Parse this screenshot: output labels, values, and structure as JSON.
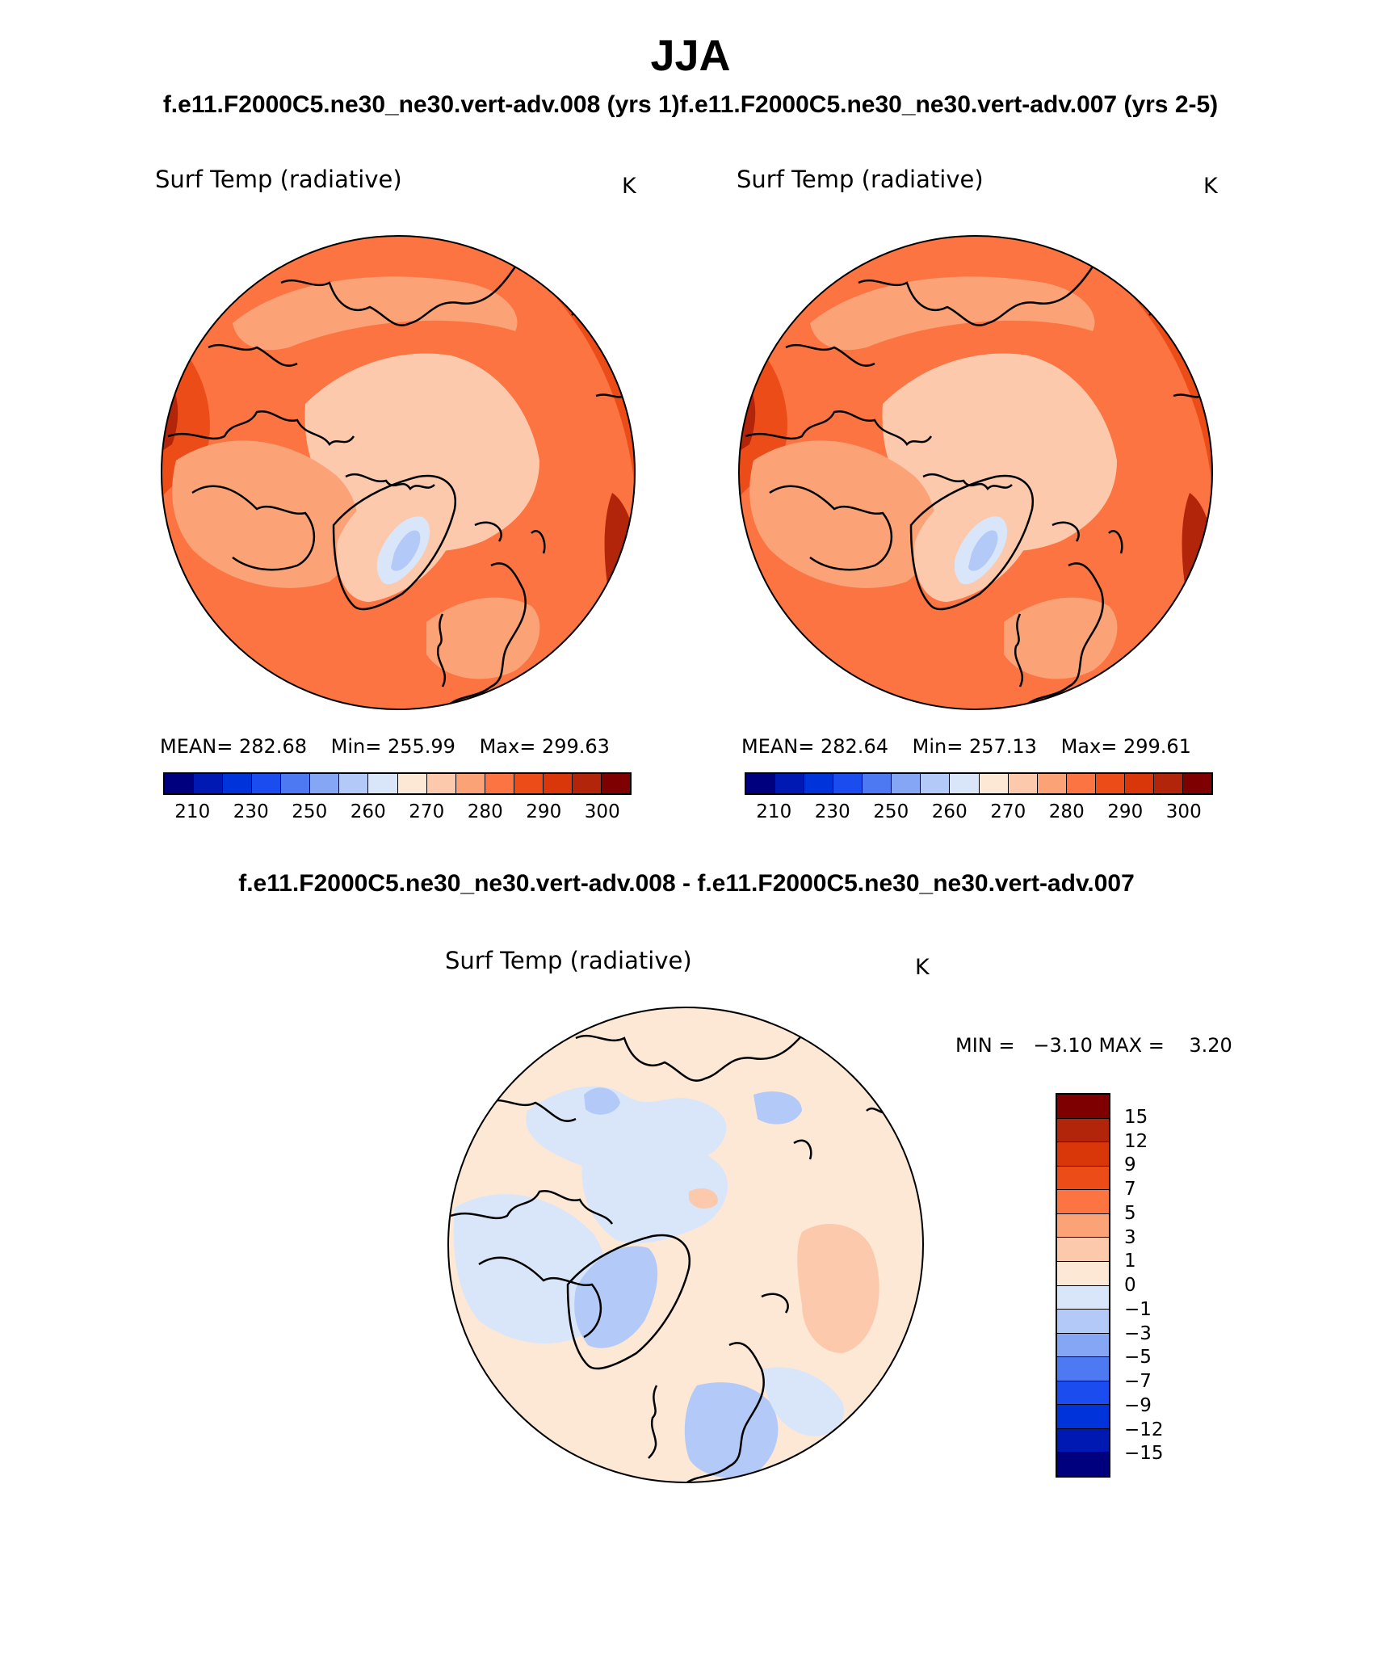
{
  "title": "JJA",
  "subtitle": "f.e11.F2000C5.ne30_ne30.vert-adv.008 (yrs 1)f.e11.F2000C5.ne30_ne30.vert-adv.007 (yrs 2-5)",
  "diff_title": "f.e11.F2000C5.ne30_ne30.vert-adv.008 - f.e11.F2000C5.ne30_ne30.vert-adv.007",
  "panels": {
    "left": {
      "variable": "Surf Temp (radiative)",
      "units": "K",
      "mean_label": "MEAN=",
      "mean": "282.68",
      "min_label": "Min=",
      "min": "255.99",
      "max_label": "Max=",
      "max": "299.63"
    },
    "right": {
      "variable": "Surf Temp (radiative)",
      "units": "K",
      "mean_label": "MEAN=",
      "mean": "282.64",
      "min_label": "Min=",
      "min": "257.13",
      "max_label": "Max=",
      "max": "299.61"
    },
    "diff": {
      "variable": "Surf Temp (radiative)",
      "units": "K",
      "minmax": "MIN =   −3.10 MAX =    3.20"
    }
  },
  "colorbar_abs": {
    "colors": [
      "#00007f",
      "#0019b3",
      "#0033d9",
      "#1a4cf0",
      "#4d79f2",
      "#85a5f5",
      "#b3c9f7",
      "#d9e6fa",
      "#fde8d6",
      "#fdc9ad",
      "#fca277",
      "#fb7442",
      "#ec4d18",
      "#d9370a",
      "#b3250a",
      "#7f0000"
    ],
    "tick_labels": [
      "210",
      "230",
      "250",
      "260",
      "270",
      "280",
      "290",
      "300"
    ]
  },
  "colorbar_diff": {
    "colors": [
      "#7f0000",
      "#b3250a",
      "#d9370a",
      "#ec4d18",
      "#fb7442",
      "#fca277",
      "#fdc9ad",
      "#fde8d6",
      "#d9e6fa",
      "#b3c9f7",
      "#85a5f5",
      "#4d79f2",
      "#1a4cf0",
      "#0033d9",
      "#0019b3",
      "#00007f"
    ],
    "tick_labels": [
      "15",
      "12",
      "9",
      "7",
      "5",
      "3",
      "1",
      "0",
      "−1",
      "−3",
      "−5",
      "−7",
      "−9",
      "−12",
      "−15"
    ]
  },
  "chart_data": [
    {
      "type": "heatmap",
      "projection": "north polar stereographic",
      "title": "Surf Temp (radiative)",
      "units": "K",
      "stats": {
        "mean": 282.68,
        "min": 255.99,
        "max": 299.63
      },
      "contour_levels": [
        210,
        220,
        230,
        240,
        250,
        255,
        260,
        265,
        270,
        275,
        280,
        285,
        290,
        295,
        300
      ],
      "map_fill_colors": {
        "ocean_high_lat": "#fdc9ad",
        "greenland_core": "#b3c9f7",
        "mid_lat": "#fb7442",
        "continental_summer": "#d9370a"
      }
    },
    {
      "type": "heatmap",
      "projection": "north polar stereographic",
      "title": "Surf Temp (radiative)",
      "units": "K",
      "stats": {
        "mean": 282.64,
        "min": 257.13,
        "max": 299.61
      },
      "contour_levels": [
        210,
        220,
        230,
        240,
        250,
        255,
        260,
        265,
        270,
        275,
        280,
        285,
        290,
        295,
        300
      ]
    },
    {
      "type": "heatmap",
      "projection": "north polar stereographic",
      "title": "Surf Temp (radiative)",
      "units": "K",
      "stats": {
        "min": -3.1,
        "max": 3.2
      },
      "contour_levels": [
        -15,
        -12,
        -9,
        -7,
        -5,
        -3,
        -1,
        0,
        1,
        3,
        5,
        7,
        9,
        12,
        15
      ]
    }
  ]
}
